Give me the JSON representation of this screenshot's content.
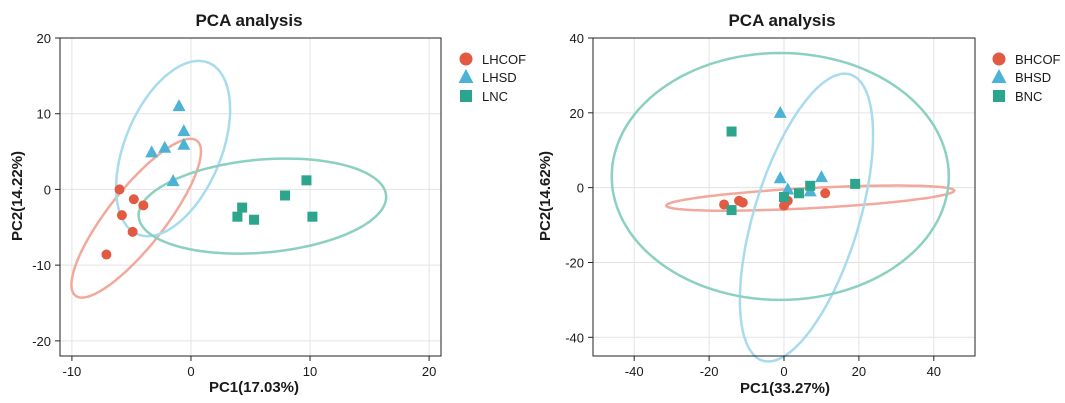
{
  "chart_data": [
    {
      "type": "scatter",
      "title": "PCA analysis",
      "xlabel": "PC1(17.03%)",
      "ylabel": "PC2(14.22%)",
      "xlim": [
        -11,
        21
      ],
      "ylim": [
        -22,
        20
      ],
      "xticks": [
        -10,
        0,
        10,
        20
      ],
      "yticks": [
        -20,
        -10,
        0,
        10,
        20
      ],
      "grid": true,
      "legend": "right",
      "series": [
        {
          "name": "LHCOF",
          "marker": "circle",
          "color": "#E25A42",
          "ellipse_color": "#F2A99B",
          "ellipse": {
            "cx": -4.6,
            "cy": -3.8,
            "rx": 11.5,
            "ry": 2.7,
            "angle_deg": 65
          },
          "points": [
            [
              -6.0,
              0.0
            ],
            [
              -4.8,
              -1.3
            ],
            [
              -4.0,
              -2.1
            ],
            [
              -5.8,
              -3.4
            ],
            [
              -4.9,
              -5.6
            ],
            [
              -7.1,
              -8.6
            ]
          ]
        },
        {
          "name": "LHSD",
          "marker": "triangle",
          "color": "#4DB3D5",
          "ellipse_color": "#A8DBEE",
          "ellipse": {
            "cx": -1.5,
            "cy": 5.4,
            "rx": 11.8,
            "ry": 4.2,
            "angle_deg": 78
          },
          "points": [
            [
              -1.0,
              11.0
            ],
            [
              -0.6,
              7.7
            ],
            [
              -0.6,
              5.9
            ],
            [
              -2.2,
              5.5
            ],
            [
              -3.3,
              4.9
            ],
            [
              -1.5,
              1.1
            ]
          ]
        },
        {
          "name": "LNC",
          "marker": "square",
          "color": "#2CA58D",
          "ellipse_color": "#8BD0C0",
          "ellipse": {
            "cx": 6.0,
            "cy": -2.2,
            "rx": 10.5,
            "ry": 6.1,
            "angle_deg": 10
          },
          "points": [
            [
              9.7,
              1.2
            ],
            [
              7.9,
              -0.8
            ],
            [
              4.3,
              -2.4
            ],
            [
              3.9,
              -3.6
            ],
            [
              5.3,
              -4.0
            ],
            [
              10.2,
              -3.6
            ]
          ]
        }
      ]
    },
    {
      "type": "scatter",
      "title": "PCA analysis",
      "xlabel": "PC1(33.27%)",
      "ylabel": "PC2(14.62%)",
      "xlim": [
        -51,
        51
      ],
      "ylim": [
        -45,
        40
      ],
      "xticks": [
        -40,
        -20,
        0,
        20,
        40
      ],
      "yticks": [
        -40,
        -20,
        0,
        20,
        40
      ],
      "grid": true,
      "legend": "right",
      "series": [
        {
          "name": "BHCOF",
          "marker": "circle",
          "color": "#E25A42",
          "ellipse_color": "#F2A99B",
          "ellipse": {
            "cx": 7.0,
            "cy": -2.8,
            "rx": 38.5,
            "ry": 2.7,
            "angle_deg": 3
          },
          "points": [
            [
              -16.0,
              -4.5
            ],
            [
              -12.0,
              -3.5
            ],
            [
              -11.0,
              -4.0
            ],
            [
              0.0,
              -4.8
            ],
            [
              1.0,
              -3.5
            ],
            [
              11.0,
              -1.5
            ]
          ]
        },
        {
          "name": "BHSD",
          "marker": "triangle",
          "color": "#4DB3D5",
          "ellipse_color": "#A8DBEE",
          "ellipse": {
            "cx": 6.0,
            "cy": -8.0,
            "rx": 40.0,
            "ry": 14.0,
            "angle_deg": 73
          },
          "points": [
            [
              -1.0,
              20.0
            ],
            [
              -1.0,
              2.5
            ],
            [
              10.0,
              2.8
            ],
            [
              1.0,
              -0.5
            ],
            [
              7.0,
              -1.0
            ]
          ]
        },
        {
          "name": "BNC",
          "marker": "square",
          "color": "#2CA58D",
          "ellipse_color": "#8BD0C0",
          "ellipse": {
            "cx": -1.0,
            "cy": 3.0,
            "rx": 45.0,
            "ry": 33.0,
            "angle_deg": 0
          },
          "points": [
            [
              -14.0,
              15.0
            ],
            [
              19.0,
              1.0
            ],
            [
              7.0,
              0.5
            ],
            [
              4.0,
              -1.5
            ],
            [
              0.0,
              -2.5
            ],
            [
              -14.0,
              -6.0
            ]
          ]
        }
      ]
    }
  ]
}
